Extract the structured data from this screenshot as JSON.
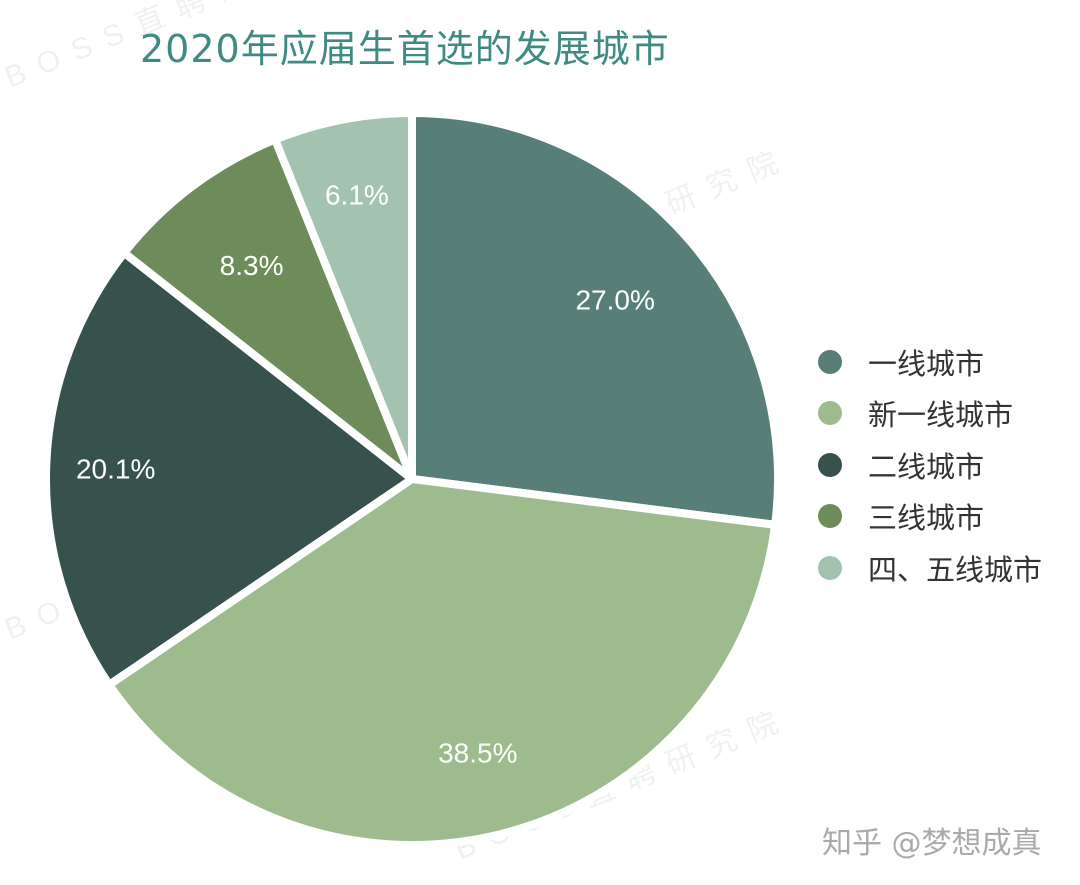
{
  "chart_data": {
    "type": "pie",
    "title": "2020年应届生首选的发展城市",
    "categories": [
      "一线城市",
      "新一线城市",
      "二线城市",
      "三线城市",
      "四、五线城市"
    ],
    "values": [
      27.0,
      38.5,
      20.1,
      8.3,
      6.1
    ],
    "value_labels": [
      "27.0%",
      "38.5%",
      "20.1%",
      "8.3%",
      "6.1%"
    ],
    "colors": [
      "#587f77",
      "#9dbb8d",
      "#37514d",
      "#6e8b5a",
      "#a4c2b0"
    ],
    "legend_position": "right",
    "start": "12 o'clock",
    "direction": "clockwise"
  },
  "watermark": "BOSS直聘研究院",
  "credit": "知乎 @梦想成真"
}
